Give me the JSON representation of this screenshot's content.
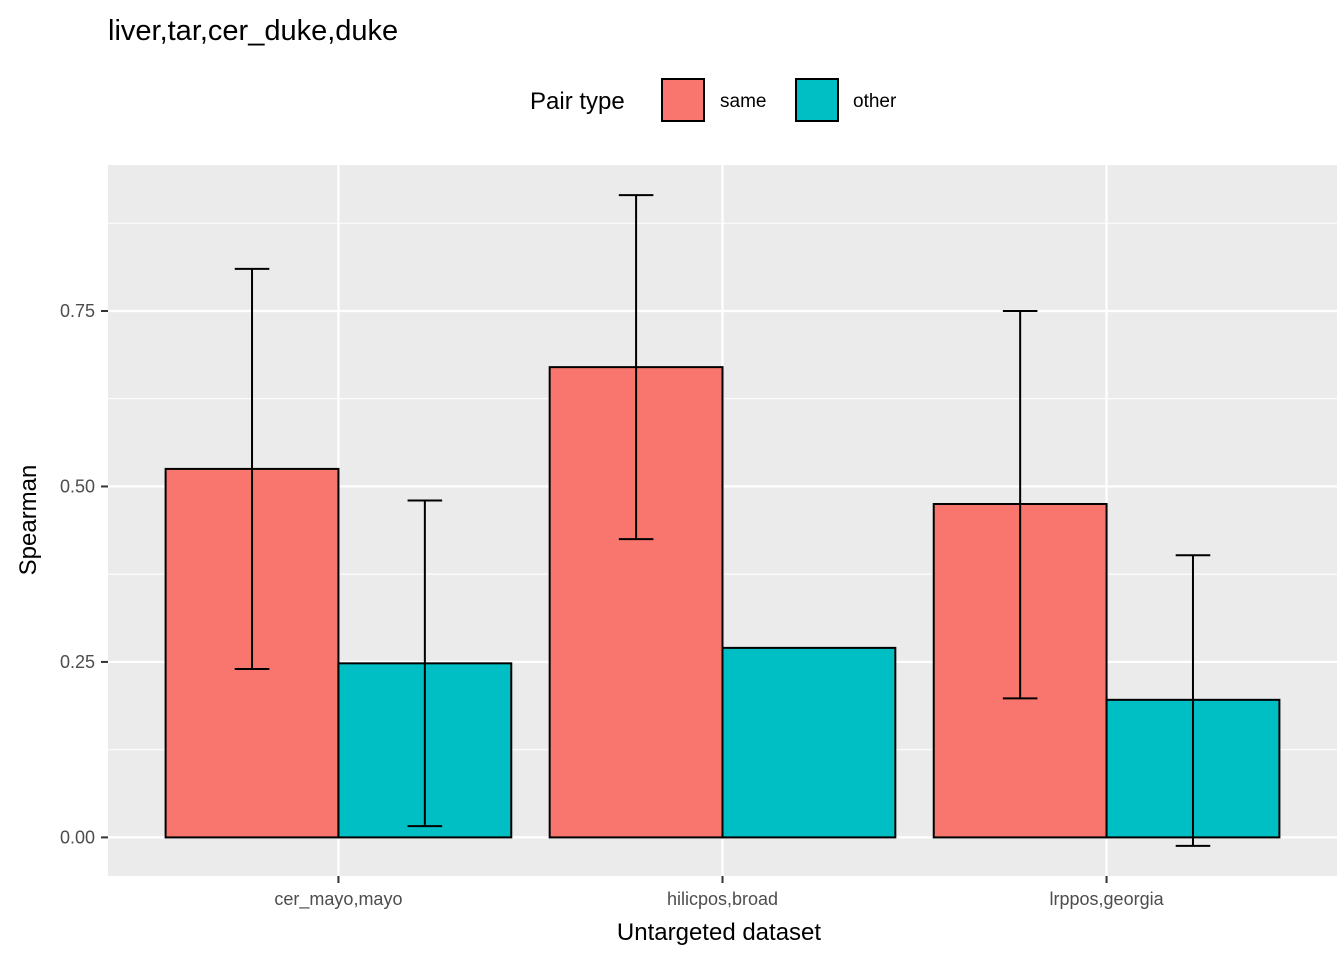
{
  "chart_data": {
    "type": "bar",
    "title": "liver,tar,cer_duke,duke",
    "xlabel": "Untargeted dataset",
    "ylabel": "Spearman",
    "categories": [
      "cer_mayo,mayo",
      "hilicpos,broad",
      "lrppos,georgia"
    ],
    "ylim": [
      -0.055,
      0.958
    ],
    "yticks": [
      0.0,
      0.25,
      0.5,
      0.75
    ],
    "ytick_labels": [
      "0.00",
      "0.25",
      "0.50",
      "0.75"
    ],
    "grid": true,
    "legend": {
      "title": "Pair type",
      "position": "top",
      "entries": [
        "same",
        "other"
      ]
    },
    "series": [
      {
        "name": "same",
        "color": "#F8766D",
        "values": [
          0.525,
          0.67,
          0.475
        ],
        "error_low": [
          0.24,
          0.425,
          0.198
        ],
        "error_high": [
          0.81,
          0.915,
          0.75
        ]
      },
      {
        "name": "other",
        "color": "#00BFC4",
        "values": [
          0.248,
          0.27,
          0.196
        ],
        "error_low": [
          0.016,
          null,
          -0.012
        ],
        "error_high": [
          0.48,
          null,
          0.402
        ]
      }
    ]
  }
}
